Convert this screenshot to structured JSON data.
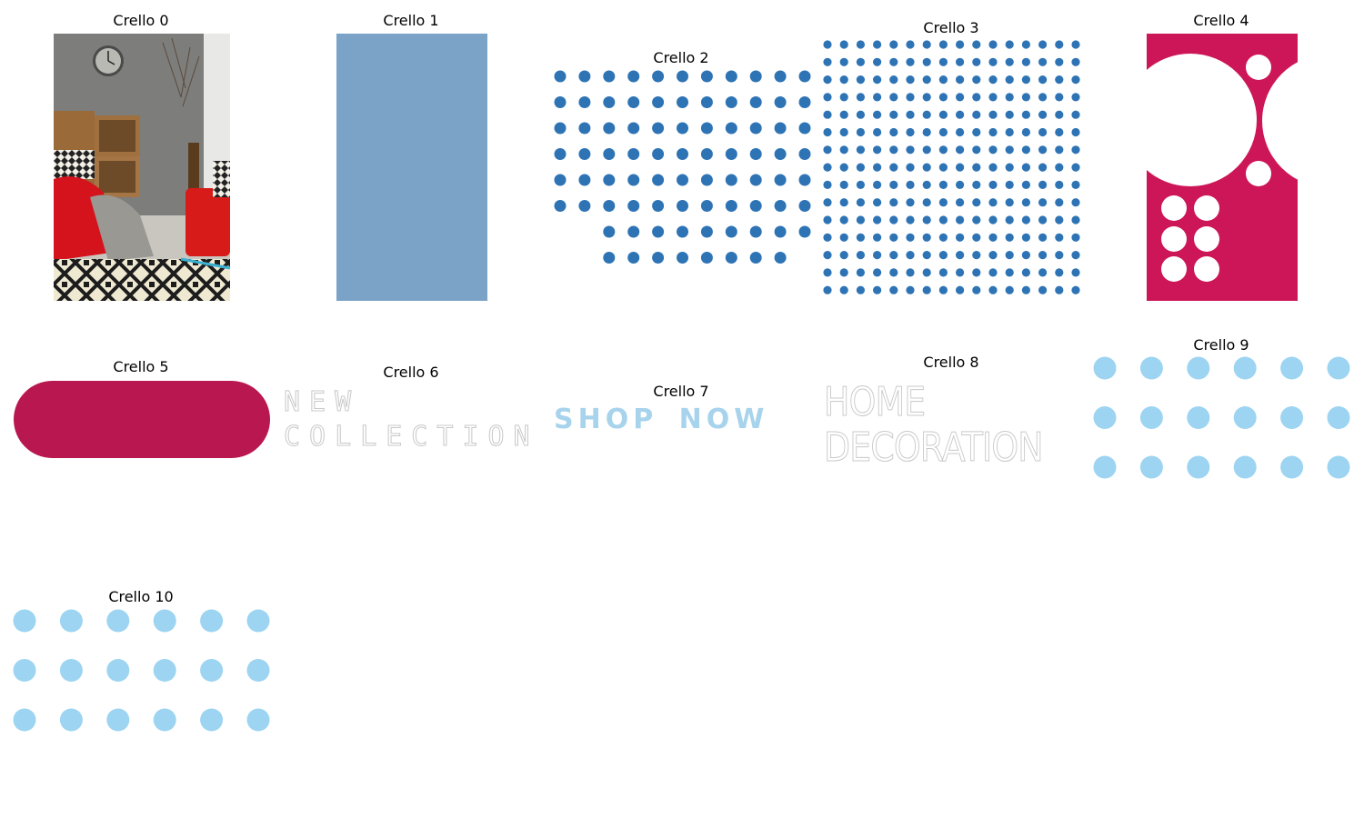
{
  "cells": [
    {
      "title": "Crello 0"
    },
    {
      "title": "Crello 1"
    },
    {
      "title": "Crello 2"
    },
    {
      "title": "Crello 3"
    },
    {
      "title": "Crello 4"
    },
    {
      "title": "Crello 5"
    },
    {
      "title": "Crello 6"
    },
    {
      "title": "Crello 7"
    },
    {
      "title": "Crello 8"
    },
    {
      "title": "Crello 9"
    },
    {
      "title": "Crello 10"
    }
  ],
  "texts": {
    "collection_line1": "NEW",
    "collection_line2": "COLLECTION",
    "shop_word1": "SHOP",
    "shop_word2": "NOW",
    "decoration_line1": "HOME",
    "decoration_line2": "DECORATION"
  },
  "colors": {
    "slate_blue": "#7ba3c8",
    "dot_blue": "#2e74b5",
    "magenta": "#cc1657",
    "crimson": "#b8174f",
    "sky_dot": "#9cd4f2",
    "shop_blue": "#a7d3ec",
    "outline_gray": "#c8c8c8"
  }
}
